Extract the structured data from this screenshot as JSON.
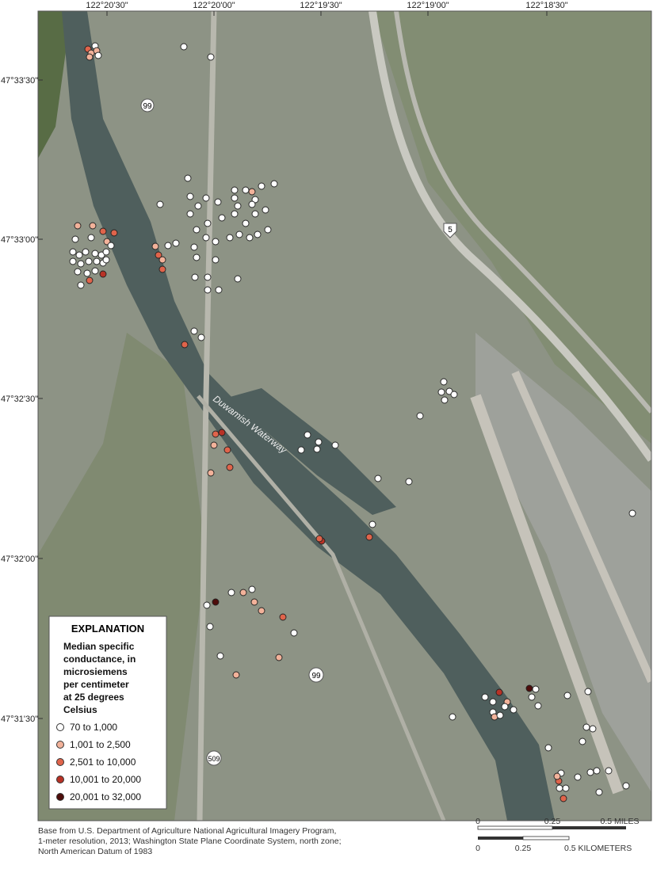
{
  "map": {
    "longitude_labels": [
      "122°20'30\"",
      "122°20'00\"",
      "122°19'30\"",
      "122°19'00\"",
      "122°18'30\""
    ],
    "latitude_labels": [
      "47°33'30\"",
      "47°33'00\"",
      "47°32'30\"",
      "47°32'00\"",
      "47°31'30\""
    ],
    "road_labels": [
      "99",
      "5",
      "99",
      "509"
    ],
    "water_label": "Duwamish Waterway",
    "legend": {
      "title": "EXPLANATION",
      "subtitle": [
        "Median specific",
        "conductance, in",
        "microsiemens",
        "per centimeter",
        "at 25 degrees",
        "Celsius"
      ],
      "items": [
        {
          "label": "70 to 1,000",
          "color": "#ffffff"
        },
        {
          "label": "1,001 to 2,500",
          "color": "#f2b29a"
        },
        {
          "label": "2,501 to 10,000",
          "color": "#e0644b"
        },
        {
          "label": "10,001 to 20,000",
          "color": "#b83226"
        },
        {
          "label": "20,001 to 32,000",
          "color": "#4e0d0b"
        }
      ]
    },
    "credit": [
      "Base from U.S. Department of Agriculture National Agricultural Imagery Program,",
      "1-meter resolution, 2013; Washington State Plane Coordinate System, north zone;",
      "North American Datum of 1983"
    ],
    "scale_miles": [
      "0",
      "0.25",
      "0.5 MILES"
    ],
    "scale_km": [
      "0",
      "0.25",
      "0.5 KILOMETERS"
    ]
  }
}
